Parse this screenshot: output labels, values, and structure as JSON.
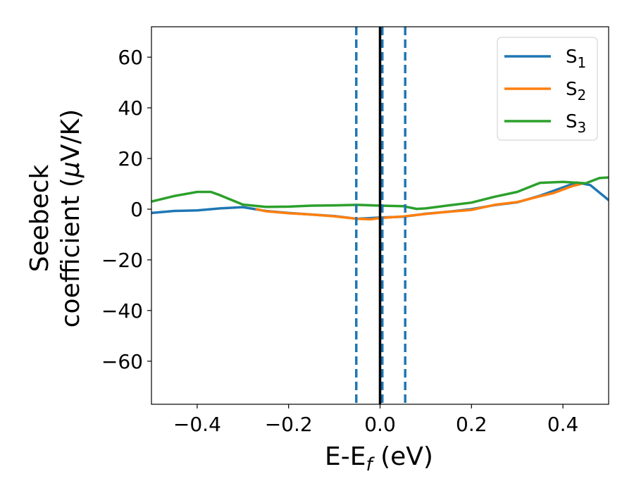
{
  "chart_data": {
    "type": "line",
    "xlabel": "E-E",
    "xlabel_sub": "f",
    "xlabel_unit": " (eV)",
    "ylabel_line1": "Seebeck",
    "ylabel_line2": "coefficient  (",
    "ylabel_mu": "μ",
    "ylabel_unit_tail": "V/K)",
    "xlim": [
      -0.5,
      0.5
    ],
    "ylim": [
      -77,
      72
    ],
    "x_ticks": [
      {
        "value": -0.4,
        "label": "−0.4"
      },
      {
        "value": -0.2,
        "label": "−0.2"
      },
      {
        "value": 0.0,
        "label": "0.0"
      },
      {
        "value": 0.2,
        "label": "0.2"
      },
      {
        "value": 0.4,
        "label": "0.4"
      }
    ],
    "y_ticks": [
      {
        "value": 60,
        "label": "60"
      },
      {
        "value": 40,
        "label": "40"
      },
      {
        "value": 20,
        "label": "20"
      },
      {
        "value": 0,
        "label": "0"
      },
      {
        "value": -20,
        "label": "−20"
      },
      {
        "value": -40,
        "label": "−40"
      },
      {
        "value": -60,
        "label": "−60"
      }
    ],
    "grid": false,
    "legend_position": "top-right",
    "series": [
      {
        "name": "S",
        "name_sub": "1",
        "color": "#1f77b4",
        "x": [
          -0.5,
          -0.45,
          -0.4,
          -0.35,
          -0.3,
          -0.25,
          -0.2,
          -0.15,
          -0.1,
          -0.05,
          0.0,
          0.05,
          0.1,
          0.15,
          0.2,
          0.25,
          0.3,
          0.35,
          0.4,
          0.43,
          0.46,
          0.5
        ],
        "y": [
          -1.5,
          -0.7,
          -0.5,
          0.3,
          0.8,
          -0.7,
          -1.5,
          -2.1,
          -2.7,
          -3.8,
          -3.3,
          -3.0,
          -1.8,
          -1.0,
          0.0,
          1.6,
          2.7,
          5.3,
          8.6,
          10.5,
          9.5,
          3.6
        ]
      },
      {
        "name": "S",
        "name_sub": "2",
        "color": "#ff7f0e",
        "x": [
          -0.27,
          -0.25,
          -0.2,
          -0.15,
          -0.1,
          -0.05,
          -0.02,
          0.0,
          0.05,
          0.1,
          0.15,
          0.2,
          0.25,
          0.3,
          0.35,
          0.38,
          0.42,
          0.44
        ],
        "y": [
          0.0,
          -0.8,
          -1.6,
          -2.1,
          -2.8,
          -3.8,
          -4.0,
          -3.5,
          -2.9,
          -1.9,
          -1.0,
          -0.3,
          1.7,
          2.8,
          5.1,
          6.4,
          9.1,
          10.0
        ]
      },
      {
        "name": "S",
        "name_sub": "3",
        "color": "#2ca02c",
        "x": [
          -0.5,
          -0.45,
          -0.4,
          -0.37,
          -0.35,
          -0.3,
          -0.25,
          -0.2,
          -0.15,
          -0.1,
          -0.05,
          0.0,
          0.05,
          0.08,
          0.1,
          0.15,
          0.2,
          0.25,
          0.3,
          0.35,
          0.4,
          0.45,
          0.48,
          0.5
        ],
        "y": [
          3.0,
          5.2,
          6.8,
          6.8,
          5.5,
          1.8,
          0.9,
          1.0,
          1.4,
          1.5,
          1.7,
          1.4,
          1.2,
          0.1,
          0.3,
          1.5,
          2.6,
          4.9,
          6.8,
          10.4,
          10.8,
          10.2,
          12.3,
          12.5
        ]
      }
    ],
    "vertical_lines": [
      {
        "x": -0.052,
        "style": "dashed",
        "color": "#1f77b4"
      },
      {
        "x": 0.005,
        "style": "dashed",
        "color": "#1f77b4"
      },
      {
        "x": 0.055,
        "style": "dashed",
        "color": "#1f77b4"
      },
      {
        "x": 0.0,
        "style": "solid",
        "color": "#000000"
      }
    ]
  }
}
